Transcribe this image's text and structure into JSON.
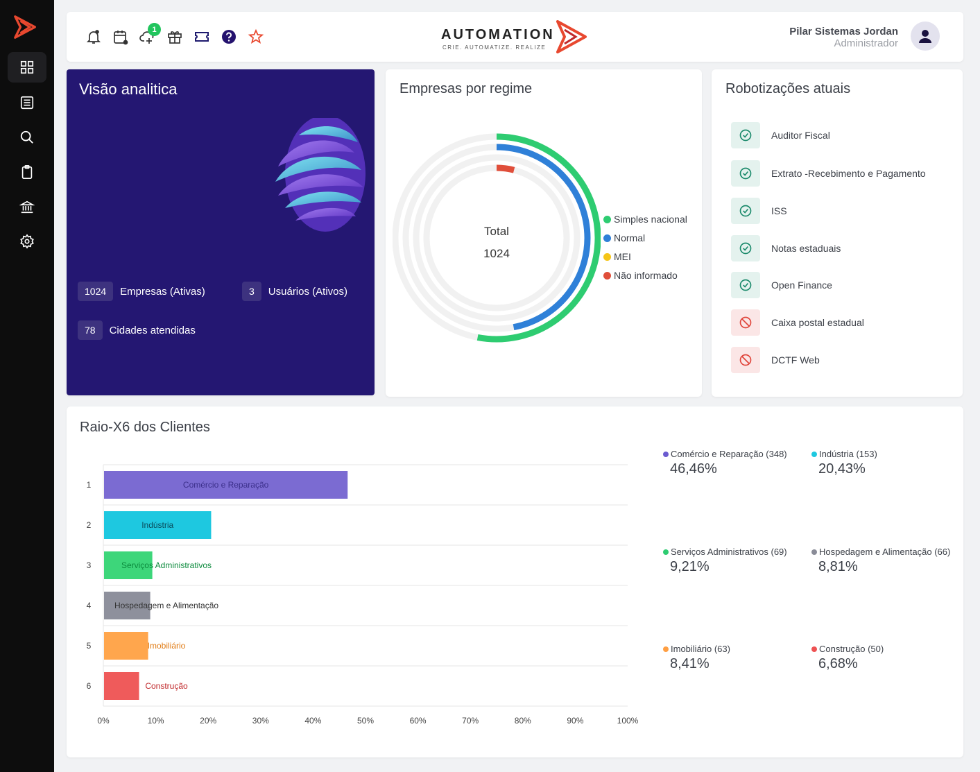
{
  "sidebar": {
    "items": [
      {
        "icon": "dashboard-icon",
        "active": true
      },
      {
        "icon": "list-icon"
      },
      {
        "icon": "search-icon"
      },
      {
        "icon": "clipboard-icon"
      },
      {
        "icon": "bank-icon"
      },
      {
        "icon": "gear-icon"
      }
    ]
  },
  "header": {
    "notification_badge": "1",
    "brand_name": "AUTOMATION",
    "brand_tagline": "CRIE. AUTOMATIZE. REALIZE",
    "user_name": "Pilar Sistemas Jordan",
    "user_role": "Administrador"
  },
  "analitica": {
    "title": "Visão analitica",
    "stats": [
      {
        "value": "1024",
        "label": "Empresas (Ativas)"
      },
      {
        "value": "3",
        "label": "Usuários (Ativos)"
      },
      {
        "value": "78",
        "label": "Cidades atendidas"
      }
    ]
  },
  "regime": {
    "title": "Empresas por regime",
    "center_label": "Total",
    "center_value": "1024",
    "legend": [
      {
        "label": "Simples nacional",
        "color": "#2ecc71"
      },
      {
        "label": "Normal",
        "color": "#2f80d8"
      },
      {
        "label": "MEI",
        "color": "#f5c518"
      },
      {
        "label": "Não informado",
        "color": "#e04e3a"
      }
    ],
    "rings": [
      {
        "name": "Simples nacional",
        "fraction": 0.53,
        "color": "#2ecc71"
      },
      {
        "name": "Normal",
        "fraction": 0.47,
        "color": "#2f80d8"
      },
      {
        "name": "MEI",
        "fraction": 0.0,
        "color": "#f5c518"
      },
      {
        "name": "Não informado",
        "fraction": 0.04,
        "color": "#e04e3a"
      }
    ]
  },
  "robo": {
    "title": "Robotizações atuais",
    "items": [
      {
        "label": "Auditor Fiscal",
        "status": "ok"
      },
      {
        "label": "Extrato -Recebimento e Pagamento",
        "status": "ok"
      },
      {
        "label": "ISS",
        "status": "ok"
      },
      {
        "label": "Notas estaduais",
        "status": "ok"
      },
      {
        "label": "Open Finance",
        "status": "ok"
      },
      {
        "label": "Caixa postal estadual",
        "status": "blocked"
      },
      {
        "label": "DCTF Web",
        "status": "blocked"
      }
    ]
  },
  "raio": {
    "title": "Raio-X6 dos Clientes",
    "summary": [
      {
        "label": "Comércio e Reparação (348)",
        "value": "46,46%",
        "color": "#6b5bd0"
      },
      {
        "label": "Indústria (153)",
        "value": "20,43%",
        "color": "#1ec8e0"
      },
      {
        "label": "Serviços Administrativos (69)",
        "value": "9,21%",
        "color": "#2ecc71"
      },
      {
        "label": "Hospedagem e Alimentação (66)",
        "value": "8,81%",
        "color": "#8a8c98"
      },
      {
        "label": "Imobiliário (63)",
        "value": "8,41%",
        "color": "#ff9f43"
      },
      {
        "label": "Construção (50)",
        "value": "6,68%",
        "color": "#ee5253"
      }
    ]
  },
  "chart_data": {
    "type": "bar",
    "orientation": "horizontal",
    "categories": [
      "1",
      "2",
      "3",
      "4",
      "5",
      "6"
    ],
    "bar_labels": [
      "Comércio e Reparação",
      "Indústria",
      "Serviços Administrativos",
      "Hospedagem e Alimentação",
      "Imobiliário",
      "Construção"
    ],
    "values": [
      46.46,
      20.43,
      9.21,
      8.81,
      8.41,
      6.68
    ],
    "colors": [
      "#7b6bd2",
      "#1ec8e0",
      "#3dd67a",
      "#8e909c",
      "#ffa64d",
      "#ef5b5b"
    ],
    "label_colors": [
      "#3b2f8a",
      "#0b4d5c",
      "#0b8a3c",
      "#333333",
      "#e07a12",
      "#c0282a"
    ],
    "x_ticks": [
      "0%",
      "10%",
      "20%",
      "30%",
      "40%",
      "50%",
      "60%",
      "70%",
      "80%",
      "90%",
      "100%"
    ],
    "xlim": [
      0,
      100
    ],
    "grid": true
  }
}
